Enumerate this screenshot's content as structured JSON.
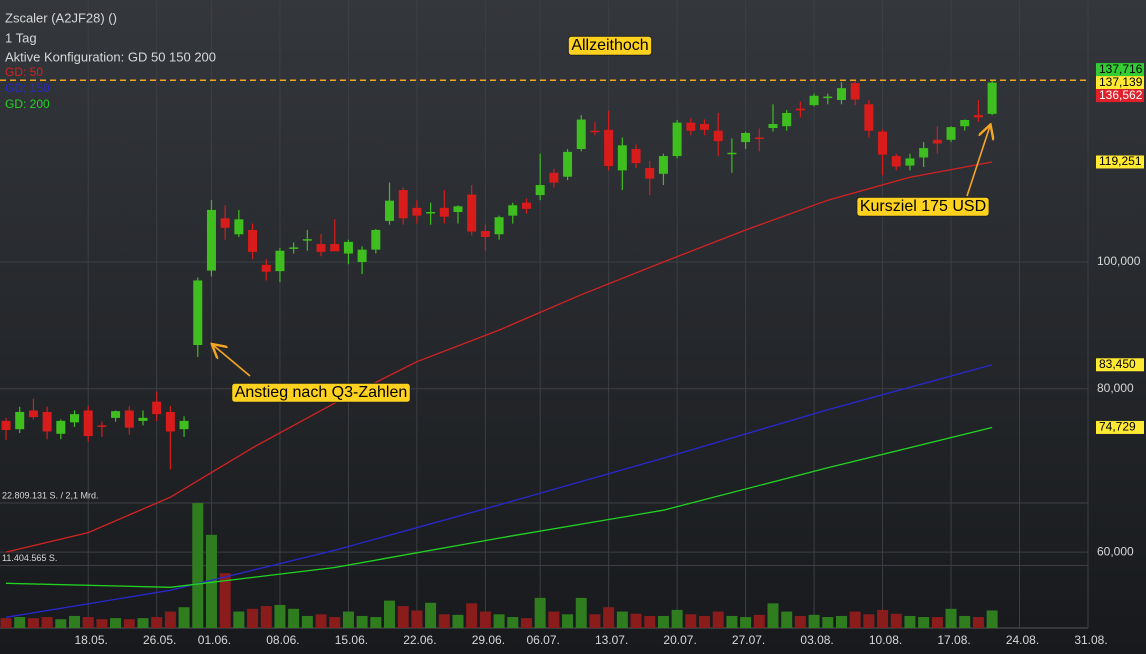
{
  "chart_data": {
    "type": "candlestick",
    "title": "Zscaler (A2JF28) ()",
    "interval": "1 Tag",
    "configuration": "Aktive Konfiguration: GD 50 150 200",
    "up_color": "#3fbf1f",
    "down_color": "#d81c1c",
    "volume_up_color": "#2f7d1f",
    "volume_down_color": "#8a1c1c",
    "xlim": [
      -0.44,
      79
    ],
    "xticks": [
      {
        "value": 6,
        "label": "18.05."
      },
      {
        "value": 11,
        "label": "26.05."
      },
      {
        "value": 15,
        "label": "01.06."
      },
      {
        "value": 20,
        "label": "08.06."
      },
      {
        "value": 25,
        "label": "15.06."
      },
      {
        "value": 30,
        "label": "22.06."
      },
      {
        "value": 35,
        "label": "29.06."
      },
      {
        "value": 39,
        "label": "06.07."
      },
      {
        "value": 44,
        "label": "13.07."
      },
      {
        "value": 49,
        "label": "20.07."
      },
      {
        "value": 54,
        "label": "27.07."
      },
      {
        "value": 59,
        "label": "03.08."
      },
      {
        "value": 64,
        "label": "10.08."
      },
      {
        "value": 69,
        "label": "17.08."
      },
      {
        "value": 74,
        "label": "24.08."
      },
      {
        "value": 79,
        "label": "31.08."
      }
    ],
    "ylim": [
      52.5,
      158.6
    ],
    "log_scale": true,
    "grid": true,
    "yticks": [
      {
        "value": 60,
        "label": "60,000"
      },
      {
        "value": 80,
        "label": "80,000"
      },
      {
        "value": 100,
        "label": "100,000"
      }
    ],
    "open": [
      75.6,
      74.5,
      77,
      76.8,
      73.9,
      75.4,
      77,
      75,
      76,
      77,
      75.6,
      78.2,
      76.8,
      74.5,
      86.4,
      98.5,
      108,
      105,
      105.8,
      99.5,
      98.4,
      102.5,
      104,
      103.2,
      103.2,
      101.5,
      100,
      102.2,
      107.5,
      113.5,
      110,
      109,
      110,
      109.2,
      112.6,
      105.6,
      105,
      108.5,
      111,
      112.5,
      117,
      116.2,
      122,
      126,
      126.2,
      117.5,
      122,
      118,
      116.8,
      120.5,
      127.8,
      127.5,
      126,
      121,
      123.5,
      124.5,
      126.6,
      127,
      131,
      131.8,
      133.5,
      133,
      137,
      132,
      125.8,
      120.5,
      118.5,
      120.2,
      124,
      124,
      127,
      129.5,
      129.8
    ],
    "high": [
      76,
      77.5,
      78.6,
      77.5,
      75.8,
      77,
      77.6,
      75.5,
      77,
      77.6,
      77,
      79.6,
      77.6,
      76.2,
      97.3,
      111.5,
      110.5,
      109.6,
      107,
      100.5,
      102.5,
      103.5,
      105.8,
      105,
      107.8,
      104,
      102.8,
      106,
      115,
      114,
      111.5,
      111,
      113.5,
      110.5,
      114.5,
      106.8,
      108.5,
      111,
      111.8,
      121,
      117.8,
      122,
      129.5,
      128,
      130.5,
      124.5,
      123,
      119.5,
      121,
      128.4,
      128.8,
      128.5,
      130,
      124.3,
      125.8,
      126.5,
      132,
      130.7,
      132.6,
      134.5,
      134.5,
      137.2,
      137.5,
      133,
      126.3,
      121,
      121,
      123.5,
      127,
      127,
      128.5,
      133,
      137.716
    ],
    "low": [
      73.1,
      74,
      75.8,
      73.2,
      73.2,
      74.8,
      72.9,
      73.5,
      75.5,
      73.8,
      75,
      75.6,
      69.4,
      73.5,
      84.6,
      97.5,
      104,
      104.5,
      100.5,
      96.8,
      96.5,
      101.5,
      102,
      101,
      102.2,
      99.6,
      97.9,
      101.5,
      106.8,
      106.8,
      107,
      106.8,
      107,
      107,
      104.8,
      102,
      104,
      107,
      108.9,
      111.5,
      114,
      115.5,
      121.5,
      125,
      117.5,
      113.5,
      118,
      112.5,
      114.5,
      120,
      125,
      125,
      120.5,
      117,
      122,
      121.5,
      125.8,
      126,
      129,
      131.5,
      132,
      132,
      131.8,
      124.5,
      116.5,
      117.5,
      117.5,
      118.2,
      121,
      123.5,
      126,
      128,
      129.5
    ],
    "close": [
      74.4,
      76.8,
      76.1,
      74.2,
      75.6,
      76.5,
      73.6,
      74.9,
      76.9,
      74.7,
      76,
      76.5,
      74.2,
      75.6,
      96.8,
      109.6,
      106.2,
      107.8,
      101.8,
      98.3,
      102,
      102.6,
      104.1,
      101.8,
      101.9,
      103.6,
      102.2,
      105.8,
      111.4,
      108,
      108.5,
      109.2,
      108.3,
      110.3,
      105.5,
      104.5,
      108.2,
      110.5,
      109.8,
      114.5,
      115,
      121.4,
      128.5,
      125.7,
      118.4,
      122.8,
      119,
      115.8,
      120.5,
      127.8,
      126,
      126.2,
      123.7,
      121.2,
      125.5,
      124.3,
      127.5,
      130,
      130.6,
      134,
      133.8,
      135.8,
      133.1,
      126,
      120.8,
      118.3,
      120,
      122.2,
      123.2,
      126.8,
      128.4,
      129,
      137.139
    ],
    "volume": [
      1800000,
      2000000,
      1800000,
      2000000,
      1600000,
      2200000,
      2000000,
      1600000,
      1800000,
      1600000,
      1800000,
      2000000,
      3000000,
      3800000,
      22800000,
      17000000,
      10000000,
      3000000,
      3500000,
      4000000,
      4200000,
      3500000,
      2200000,
      2500000,
      2000000,
      3000000,
      2200000,
      2000000,
      5000000,
      4000000,
      3200000,
      4600000,
      2500000,
      2400000,
      4500000,
      3000000,
      2500000,
      2000000,
      1800000,
      5500000,
      3000000,
      2500000,
      5500000,
      2500000,
      3800000,
      3000000,
      2600000,
      2200000,
      2200000,
      3300000,
      2500000,
      2200000,
      3000000,
      2200000,
      2000000,
      2400000,
      4500000,
      3000000,
      2200000,
      2400000,
      2000000,
      2200000,
      3000000,
      2500000,
      3300000,
      2600000,
      2200000,
      2000000,
      2000000,
      3500000,
      2200000,
      2000000,
      3200000
    ],
    "volume_lim": [
      0,
      22809131
    ],
    "volume_ticks": [
      {
        "value": 22809131,
        "label": "22.809.131 S. / 2,1 Mrd."
      },
      {
        "value": 11404565,
        "label": "11.404.565 S."
      }
    ],
    "series": [
      {
        "name": "GD: 50",
        "color": "#d42222",
        "x": [
          0,
          6,
          12,
          18,
          24,
          30,
          36,
          42,
          48,
          54,
          60,
          66,
          72
        ],
        "values": [
          60.0,
          62.1,
          66.1,
          72.1,
          78.0,
          83.9,
          88.7,
          94.4,
          100.0,
          105.8,
          111.5,
          116.1,
          119.251
        ]
      },
      {
        "name": "GD: 150",
        "color": "#2828d0",
        "x": [
          0,
          12,
          24,
          36,
          48,
          60,
          72
        ],
        "values": [
          53.5,
          56.1,
          60.2,
          65.2,
          70.8,
          77.1,
          83.45
        ]
      },
      {
        "name": "GD: 200",
        "color": "#22d422",
        "x": [
          0,
          12,
          24,
          36,
          48,
          60,
          72
        ],
        "values": [
          56.8,
          56.4,
          58.4,
          61.5,
          64.6,
          69.6,
          74.729
        ]
      }
    ],
    "price_labels": [
      {
        "value": 137.716,
        "label": "137,716",
        "color": "#33cc33"
      },
      {
        "value": 137.139,
        "label": "137,139",
        "color": "#ffe933"
      },
      {
        "value": 136.562,
        "label": "136,562",
        "color": "#e0202a"
      },
      {
        "value": 119.251,
        "label": "119,251",
        "color": "#ffe933"
      },
      {
        "value": 83.45,
        "label": "83,450",
        "color": "#ffe933"
      },
      {
        "value": 74.729,
        "label": "74,729",
        "color": "#ffe933"
      }
    ],
    "annotations": [
      "Allzeithoch",
      "Anstieg nach Q3-Zahlen",
      "Kursziel 175 USD"
    ]
  }
}
